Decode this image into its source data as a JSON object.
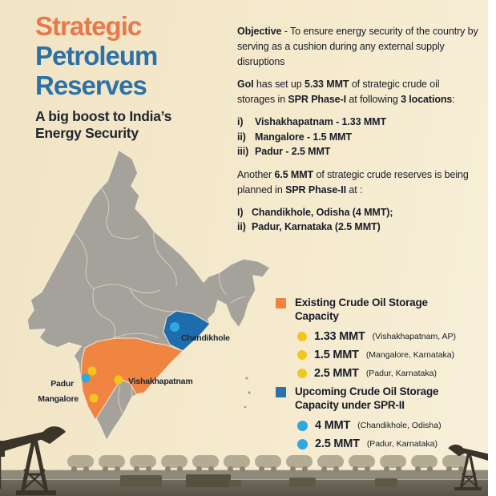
{
  "header": {
    "title_line1": "Strategic",
    "title_line2": "Petroleum",
    "title_line3": "Reserves",
    "subtitle": "A big boost to India’s Energy Security"
  },
  "intro": {
    "objective_segments": [
      {
        "t": "Objective",
        "b": true
      },
      {
        "t": " - To ensure energy security of the country by serving as a cushion during any external supply disruptions"
      }
    ],
    "phase1_segments": [
      {
        "t": "GoI",
        "b": true
      },
      {
        "t": " has set up "
      },
      {
        "t": "5.33 MMT",
        "b": true
      },
      {
        "t": " of strategic crude oil storages in "
      },
      {
        "t": "SPR Phase-I",
        "b": true
      },
      {
        "t": " at following "
      },
      {
        "t": "3 locations",
        "b": true
      },
      {
        "t": ":"
      }
    ],
    "phase1_list": [
      {
        "num": "i)",
        "text": "Vishakhapatnam - 1.33 MMT"
      },
      {
        "num": "ii)",
        "text": "Mangalore - 1.5 MMT"
      },
      {
        "num": "iii)",
        "text": "Padur - 2.5 MMT"
      }
    ],
    "phase2_segments": [
      {
        "t": "Another "
      },
      {
        "t": "6.5 MMT",
        "b": true
      },
      {
        "t": " of strategic crude reserves is being planned in "
      },
      {
        "t": "SPR Phase-II",
        "b": true
      },
      {
        "t": " at :"
      }
    ],
    "phase2_list": [
      {
        "num": "I)",
        "text": "Chandikhole, Odisha (4 MMT);"
      },
      {
        "num": "ii)",
        "text": "Padur, Karnataka (2.5 MMT)"
      }
    ]
  },
  "map": {
    "labels": {
      "chandikhole": "Chandikhole",
      "vishakhapatnam": "Vishakhapatnam",
      "padur": "Padur",
      "mangalore": "Mangalore"
    },
    "markers": [
      {
        "name": "Vishakhapatnam",
        "type": "existing",
        "capacity": "1.33 MMT"
      },
      {
        "name": "Mangalore",
        "type": "existing",
        "capacity": "1.5 MMT"
      },
      {
        "name": "Padur",
        "type": "existing",
        "capacity": "2.5 MMT"
      },
      {
        "name": "Padur",
        "type": "upcoming",
        "capacity": "2.5 MMT"
      },
      {
        "name": "Chandikhole",
        "type": "upcoming",
        "capacity": "4 MMT"
      }
    ],
    "colors": {
      "land": "#A5A29C",
      "state_border": "#DDD4BC",
      "existing_region": "#F08441",
      "upcoming_region": "#1D6DAD",
      "existing_dot": "#F2C71D",
      "upcoming_dot": "#2FA8E1"
    }
  },
  "legend": {
    "existing": {
      "swatch_color": "#F08441",
      "dot_color": "#F2C71D",
      "title": "Existing Crude Oil Storage Capacity",
      "items": [
        {
          "value": "1.33 MMT",
          "location": "(Vishakhapatnam, AP)"
        },
        {
          "value": "1.5 MMT",
          "location": "(Mangalore, Karnataka)"
        },
        {
          "value": "2.5 MMT",
          "location": "(Padur, Karnataka)"
        }
      ]
    },
    "upcoming": {
      "swatch_color": "#2A72A8",
      "dot_color": "#2FA8E1",
      "title": "Upcoming Crude Oil Storage Capacity under SPR-II",
      "items": [
        {
          "value": "4 MMT",
          "location": "(Chandikhole, Odisha)"
        },
        {
          "value": "2.5 MMT",
          "location": "(Padur, Karnataka)"
        }
      ]
    }
  },
  "theme": {
    "background": "#F5E9CD",
    "accent_orange": "#E8794A",
    "accent_blue": "#2C72A8",
    "text_dark": "#1B2430"
  }
}
